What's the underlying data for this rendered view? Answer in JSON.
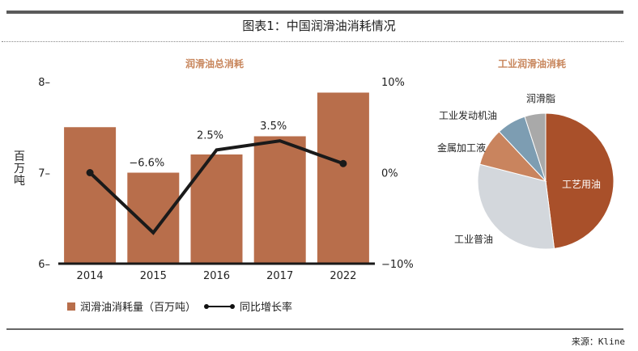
{
  "title": "图表1：中国润滑油消耗情况",
  "source": "来源：Kline",
  "colors": {
    "bar": "#b86e4b",
    "line": "#1a1a1a",
    "subtitle": "#c8865c"
  },
  "chart_data": [
    {
      "type": "bar",
      "title": "润滑油总消耗",
      "ylabel": "百万吨",
      "categories": [
        "2014",
        "2015",
        "2016",
        "2017",
        "2022"
      ],
      "ylim": [
        6,
        8
      ],
      "yticks": [
        "8",
        "7",
        "6"
      ],
      "y2lim": [
        -10,
        10
      ],
      "y2ticks": [
        "10%",
        "0%",
        "-10%"
      ],
      "series": [
        {
          "name": "润滑油消耗量（百万吨）",
          "type": "bar",
          "values": [
            7.5,
            7.0,
            7.2,
            7.4,
            7.88
          ]
        },
        {
          "name": "同比增长率",
          "type": "line",
          "axis": "right",
          "values": [
            0,
            -6.6,
            2.5,
            3.5,
            1.0
          ],
          "labels": [
            "",
            "-6.6%",
            "2.5%",
            "3.5%",
            ""
          ]
        }
      ],
      "legend": "bottom"
    },
    {
      "type": "pie",
      "title": "工业润滑油消耗",
      "slices": [
        {
          "label": "工艺用油",
          "value": 48,
          "color": "#a9502a"
        },
        {
          "label": "工业普油",
          "value": 31,
          "color": "#d3d7dc"
        },
        {
          "label": "金属加工液",
          "value": 9,
          "color": "#c9845e"
        },
        {
          "label": "工业发动机油",
          "value": 7,
          "color": "#7d9db2"
        },
        {
          "label": "润滑脂",
          "value": 5,
          "color": "#a9a9a9"
        }
      ]
    }
  ]
}
